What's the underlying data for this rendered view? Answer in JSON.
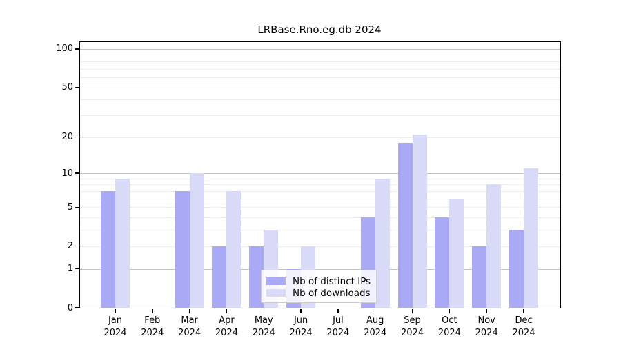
{
  "title": "LRBase.Rno.eg.db 2024",
  "chart_data": {
    "type": "bar",
    "title": "LRBase.Rno.eg.db 2024",
    "categories": [
      "Jan",
      "Feb",
      "Mar",
      "Apr",
      "May",
      "Jun",
      "Jul",
      "Aug",
      "Sep",
      "Oct",
      "Nov",
      "Dec"
    ],
    "year": "2024",
    "series": [
      {
        "name": "Nb of distinct IPs",
        "color": "#a9a9f6",
        "values": [
          7,
          0,
          7,
          2,
          2,
          1,
          0,
          4,
          18,
          4,
          2,
          3
        ]
      },
      {
        "name": "Nb of downloads",
        "color": "#d9d9f8",
        "values": [
          9,
          0,
          10,
          7,
          3,
          2,
          0,
          9,
          21,
          6,
          8,
          11
        ]
      }
    ],
    "xlabel": "",
    "ylabel": "",
    "yscale": "log1p",
    "ylim": [
      0,
      115
    ],
    "yticks": [
      0,
      1,
      2,
      5,
      10,
      20,
      50,
      100
    ],
    "major_gridlines": [
      1,
      10,
      100
    ],
    "minor_gridlines": [
      2,
      3,
      4,
      5,
      6,
      7,
      8,
      9,
      20,
      30,
      40,
      50,
      60,
      70,
      80,
      90
    ],
    "grid": true,
    "legend_position": "bottom-center"
  },
  "legend": {
    "items": [
      {
        "label": "Nb of distinct IPs",
        "color": "#a9a9f6"
      },
      {
        "label": "Nb of downloads",
        "color": "#d9d9f8"
      }
    ]
  },
  "colors": {
    "bar_distinct_ips": "#a9a9f6",
    "bar_downloads": "#d9d9f8",
    "grid_major": "#c4c4c4",
    "grid_minor": "#ededed",
    "axis": "#000000",
    "legend_border": "#cccccc",
    "background": "#ffffff"
  }
}
